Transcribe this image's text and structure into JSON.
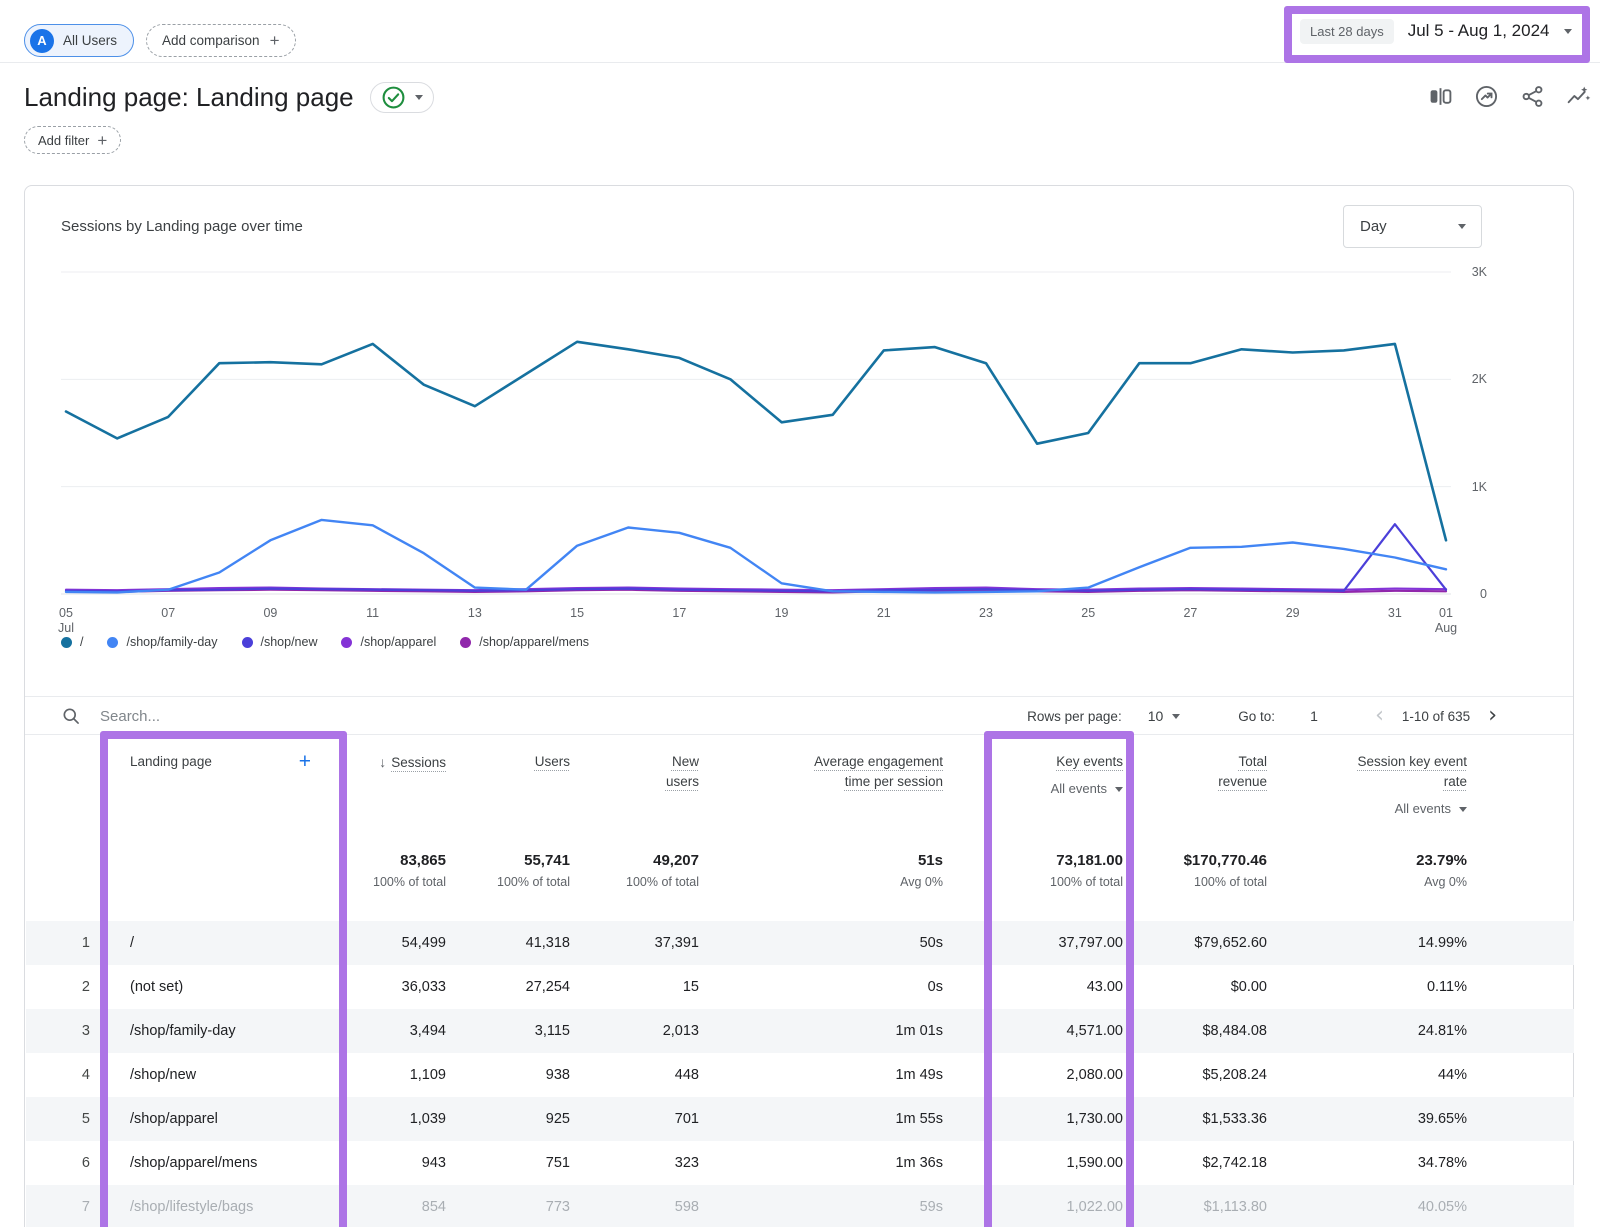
{
  "header": {
    "all_users_badge": "A",
    "all_users_label": "All Users",
    "add_comparison_label": "Add comparison",
    "date_range": {
      "preset": "Last 28 days",
      "range": "Jul 5 - Aug 1, 2024"
    },
    "title": "Landing page: Landing page",
    "add_filter_label": "Add filter"
  },
  "chart": {
    "title": "Sessions by Landing page over time",
    "granularity": "Day"
  },
  "chart_data": {
    "type": "line",
    "title": "Sessions by Landing page over time",
    "x": [
      "Jul 5",
      "Jul 6",
      "Jul 7",
      "Jul 8",
      "Jul 9",
      "Jul 10",
      "Jul 11",
      "Jul 12",
      "Jul 13",
      "Jul 14",
      "Jul 15",
      "Jul 16",
      "Jul 17",
      "Jul 18",
      "Jul 19",
      "Jul 20",
      "Jul 21",
      "Jul 22",
      "Jul 23",
      "Jul 24",
      "Jul 25",
      "Jul 26",
      "Jul 27",
      "Jul 28",
      "Jul 29",
      "Jul 30",
      "Jul 31",
      "Aug 1"
    ],
    "xticks": [
      {
        "i": 0,
        "lines": [
          "05",
          "Jul"
        ]
      },
      {
        "i": 2,
        "lines": [
          "07"
        ]
      },
      {
        "i": 4,
        "lines": [
          "09"
        ]
      },
      {
        "i": 6,
        "lines": [
          "11"
        ]
      },
      {
        "i": 8,
        "lines": [
          "13"
        ]
      },
      {
        "i": 10,
        "lines": [
          "15"
        ]
      },
      {
        "i": 12,
        "lines": [
          "17"
        ]
      },
      {
        "i": 14,
        "lines": [
          "19"
        ]
      },
      {
        "i": 16,
        "lines": [
          "21"
        ]
      },
      {
        "i": 18,
        "lines": [
          "23"
        ]
      },
      {
        "i": 20,
        "lines": [
          "25"
        ]
      },
      {
        "i": 22,
        "lines": [
          "27"
        ]
      },
      {
        "i": 24,
        "lines": [
          "29"
        ]
      },
      {
        "i": 26,
        "lines": [
          "31"
        ]
      },
      {
        "i": 27,
        "lines": [
          "01",
          "Aug"
        ]
      }
    ],
    "yticks": [
      {
        "v": 0,
        "label": "0"
      },
      {
        "v": 1000,
        "label": "1K"
      },
      {
        "v": 2000,
        "label": "2K"
      },
      {
        "v": 3000,
        "label": "3K"
      }
    ],
    "ylim": [
      0,
      3000
    ],
    "grid": true,
    "legend_position": "bottom",
    "series": [
      {
        "name": "/",
        "color": "#15719f",
        "width": 2.6,
        "values": [
          1700,
          1450,
          1650,
          2150,
          2160,
          2140,
          2330,
          1950,
          1750,
          2050,
          2350,
          2280,
          2200,
          2000,
          1600,
          1670,
          2270,
          2300,
          2150,
          1400,
          1500,
          2150,
          2150,
          2280,
          2250,
          2270,
          2330,
          500
        ]
      },
      {
        "name": "/shop/family-day",
        "color": "#4285f4",
        "width": 2.4,
        "values": [
          20,
          15,
          40,
          200,
          500,
          690,
          640,
          380,
          60,
          40,
          450,
          620,
          570,
          430,
          100,
          25,
          20,
          15,
          20,
          25,
          60,
          250,
          430,
          440,
          480,
          420,
          340,
          230
        ]
      },
      {
        "name": "/shop/new",
        "color": "#4b3fd9",
        "width": 2.2,
        "values": [
          30,
          25,
          35,
          40,
          50,
          45,
          40,
          35,
          30,
          35,
          45,
          50,
          40,
          35,
          30,
          25,
          35,
          40,
          45,
          35,
          30,
          40,
          45,
          40,
          35,
          30,
          650,
          40
        ]
      },
      {
        "name": "/shop/apparel",
        "color": "#8433d6",
        "width": 2.2,
        "values": [
          40,
          35,
          45,
          55,
          60,
          50,
          45,
          40,
          35,
          45,
          55,
          60,
          50,
          45,
          40,
          35,
          45,
          55,
          60,
          45,
          40,
          50,
          55,
          50,
          45,
          40,
          50,
          45
        ]
      },
      {
        "name": "/shop/apparel/mens",
        "color": "#9027ab",
        "width": 2.2,
        "values": [
          25,
          20,
          30,
          35,
          40,
          35,
          30,
          25,
          20,
          25,
          35,
          40,
          30,
          25,
          20,
          15,
          25,
          30,
          35,
          25,
          20,
          30,
          35,
          30,
          25,
          20,
          30,
          25
        ]
      }
    ]
  },
  "table": {
    "search_placeholder": "Search...",
    "rows_per_page_label": "Rows per page:",
    "rows_per_page_value": "10",
    "go_to_label": "Go to:",
    "go_to_value": "1",
    "pagination": "1-10 of 635",
    "columns": [
      {
        "key": "num",
        "lines": []
      },
      {
        "key": "landing_page",
        "lines": [
          "Landing page"
        ]
      },
      {
        "key": "sessions",
        "lines": [
          "Sessions"
        ],
        "sorted": true
      },
      {
        "key": "users",
        "lines": [
          "Users"
        ]
      },
      {
        "key": "new_users",
        "lines": [
          "New",
          "users"
        ]
      },
      {
        "key": "avg_engagement",
        "lines": [
          "Average engagement",
          "time per session"
        ]
      },
      {
        "key": "key_events",
        "lines": [
          "Key events"
        ],
        "selector": "All events"
      },
      {
        "key": "total_revenue",
        "lines": [
          "Total",
          "revenue"
        ]
      },
      {
        "key": "session_key_event_rate",
        "lines": [
          "Session key event",
          "rate"
        ],
        "selector": "All events"
      }
    ],
    "totals": {
      "values": [
        "83,865",
        "55,741",
        "49,207",
        "51s",
        "73,181.00",
        "$170,770.46",
        "23.79%"
      ],
      "subs": [
        "100% of total",
        "100% of total",
        "100% of total",
        "Avg 0%",
        "100% of total",
        "100% of total",
        "Avg 0%"
      ]
    },
    "rows": [
      {
        "num": "1",
        "page": "/",
        "values": [
          "54,499",
          "41,318",
          "37,391",
          "50s",
          "37,797.00",
          "$79,652.60",
          "14.99%"
        ]
      },
      {
        "num": "2",
        "page": "(not set)",
        "values": [
          "36,033",
          "27,254",
          "15",
          "0s",
          "43.00",
          "$0.00",
          "0.11%"
        ]
      },
      {
        "num": "3",
        "page": "/shop/family-day",
        "values": [
          "3,494",
          "3,115",
          "2,013",
          "1m 01s",
          "4,571.00",
          "$8,484.08",
          "24.81%"
        ]
      },
      {
        "num": "4",
        "page": "/shop/new",
        "values": [
          "1,109",
          "938",
          "448",
          "1m 49s",
          "2,080.00",
          "$5,208.24",
          "44%"
        ]
      },
      {
        "num": "5",
        "page": "/shop/apparel",
        "values": [
          "1,039",
          "925",
          "701",
          "1m 55s",
          "1,730.00",
          "$1,533.36",
          "39.65%"
        ]
      },
      {
        "num": "6",
        "page": "/shop/apparel/mens",
        "values": [
          "943",
          "751",
          "323",
          "1m 36s",
          "1,590.00",
          "$2,742.18",
          "34.78%"
        ]
      },
      {
        "num": "7",
        "page": "/shop/lifestyle/bags",
        "values": [
          "854",
          "773",
          "598",
          "59s",
          "1,022.00",
          "$1,113.80",
          "40.05%"
        ],
        "faded": true
      }
    ]
  },
  "annotations": {
    "highlight_color": "#ad74e6"
  }
}
